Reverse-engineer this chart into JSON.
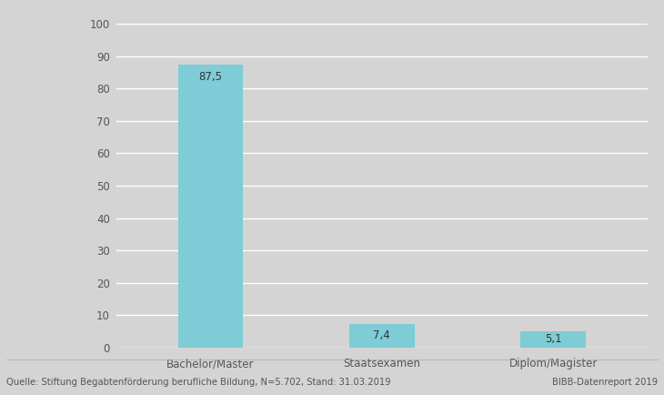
{
  "categories": [
    "Bachelor/Master",
    "Staatsexamen",
    "Diplom/Magister"
  ],
  "values": [
    87.5,
    7.4,
    5.1
  ],
  "bar_color": "#7DCCD6",
  "background_color": "#D4D4D4",
  "plot_bg_color": "#D4D4D4",
  "ylim": [
    0,
    100
  ],
  "yticks": [
    0,
    10,
    20,
    30,
    40,
    50,
    60,
    70,
    80,
    90,
    100
  ],
  "label_fontsize": 8.5,
  "tick_fontsize": 8.5,
  "footer_left": "Quelle: Stiftung Begabtenförderung berufliche Bildung, N=5.702, Stand: 31.03.2019",
  "footer_right": "BIBB-Datenreport 2019",
  "value_labels": [
    "87,5",
    "7,4",
    "5,1"
  ]
}
